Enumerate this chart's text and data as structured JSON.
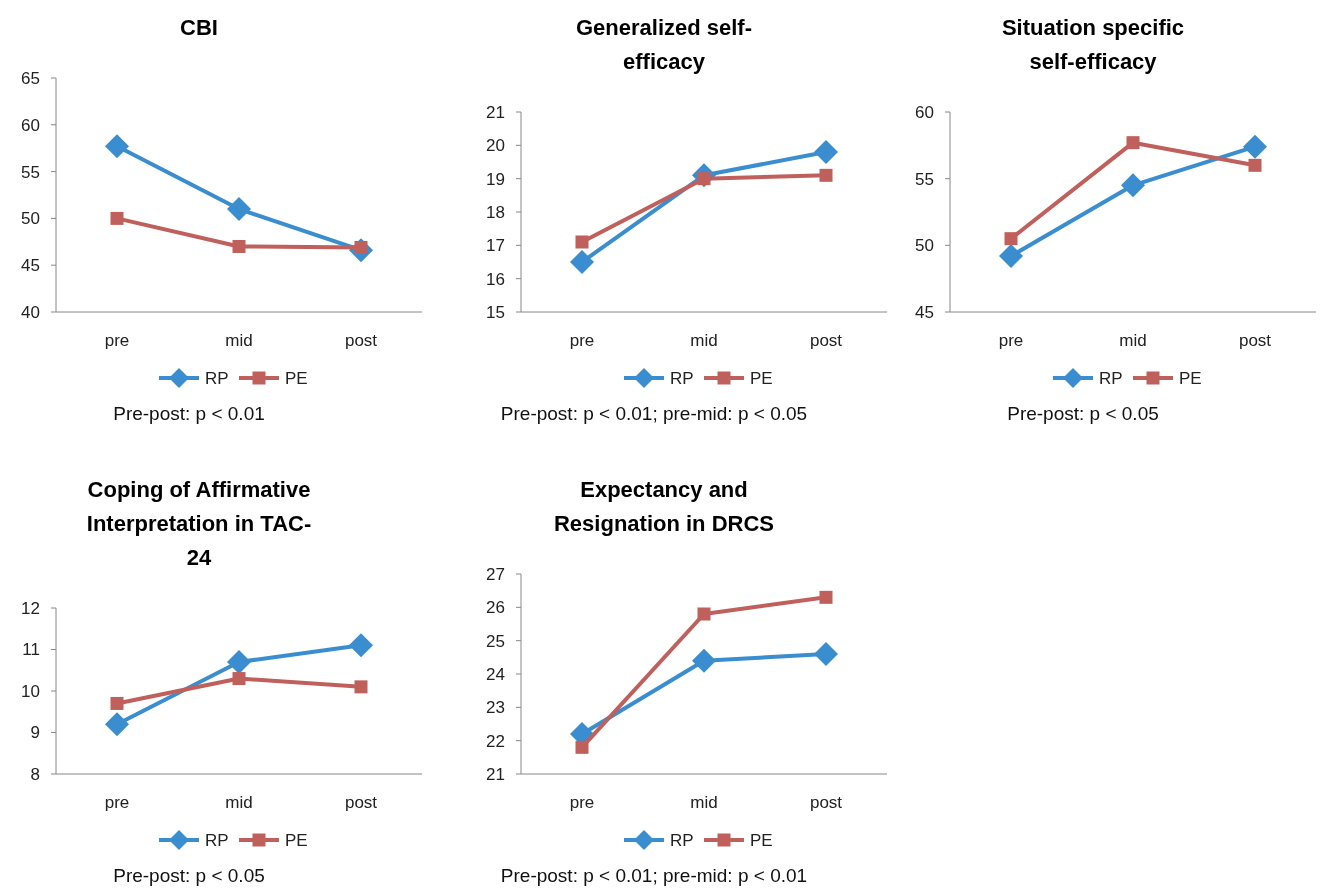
{
  "chart_data": [
    {
      "type": "line",
      "title": "CBI",
      "categories": [
        "pre",
        "mid",
        "post"
      ],
      "ylim": [
        40,
        65
      ],
      "yticks": [
        40,
        45,
        50,
        55,
        60,
        65
      ],
      "legend": "bottom",
      "annotations": [
        "Pre-post: p < 0.01"
      ],
      "series": [
        {
          "name": "RP",
          "color": "#3a8dce",
          "marker": "diamond",
          "values": [
            57.7,
            51,
            46.6
          ]
        },
        {
          "name": "PE",
          "color": "#c0605d",
          "marker": "square",
          "values": [
            50,
            47,
            46.9
          ]
        }
      ]
    },
    {
      "type": "line",
      "title": "Generalized self-\nefficacy",
      "categories": [
        "pre",
        "mid",
        "post"
      ],
      "ylim": [
        15,
        21
      ],
      "yticks": [
        15,
        16,
        17,
        18,
        19,
        20,
        21
      ],
      "legend": "bottom",
      "annotations": [
        "Pre-post: p < 0.01; pre-mid: p < 0.05"
      ],
      "series": [
        {
          "name": "RP",
          "color": "#3a8dce",
          "marker": "diamond",
          "values": [
            16.5,
            19.1,
            19.8
          ]
        },
        {
          "name": "PE",
          "color": "#c0605d",
          "marker": "square",
          "values": [
            17.1,
            19,
            19.1
          ]
        }
      ]
    },
    {
      "type": "line",
      "title": "Situation specific\nself-efficacy",
      "categories": [
        "pre",
        "mid",
        "post"
      ],
      "ylim": [
        45,
        60
      ],
      "yticks": [
        45,
        50,
        55,
        60
      ],
      "legend": "bottom",
      "annotations": [
        "Pre-post: p < 0.05"
      ],
      "series": [
        {
          "name": "RP",
          "color": "#3a8dce",
          "marker": "diamond",
          "values": [
            49.2,
            54.5,
            57.4
          ]
        },
        {
          "name": "PE",
          "color": "#c0605d",
          "marker": "square",
          "values": [
            50.5,
            57.7,
            56
          ]
        }
      ]
    },
    {
      "type": "line",
      "title": "Coping of Affirmative\nInterpretation in TAC-\n24",
      "categories": [
        "pre",
        "mid",
        "post"
      ],
      "ylim": [
        8,
        12
      ],
      "yticks": [
        8,
        9,
        10,
        11,
        12
      ],
      "legend": "bottom",
      "annotations": [
        "Pre-post: p < 0.05"
      ],
      "series": [
        {
          "name": "RP",
          "color": "#3a8dce",
          "marker": "diamond",
          "values": [
            9.2,
            10.7,
            11.1
          ]
        },
        {
          "name": "PE",
          "color": "#c0605d",
          "marker": "square",
          "values": [
            9.7,
            10.3,
            10.1
          ]
        }
      ]
    },
    {
      "type": "line",
      "title": "Expectancy and\nResignation in DRCS",
      "categories": [
        "pre",
        "mid",
        "post"
      ],
      "ylim": [
        21,
        27
      ],
      "yticks": [
        21,
        22,
        23,
        24,
        25,
        26,
        27
      ],
      "legend": "bottom",
      "annotations": [
        "Pre-post: p < 0.01; pre-mid: p < 0.01"
      ],
      "series": [
        {
          "name": "RP",
          "color": "#3a8dce",
          "marker": "diamond",
          "values": [
            22.2,
            24.4,
            24.6
          ]
        },
        {
          "name": "PE",
          "color": "#c0605d",
          "marker": "square",
          "values": [
            21.8,
            25.8,
            26.3
          ]
        }
      ]
    }
  ]
}
